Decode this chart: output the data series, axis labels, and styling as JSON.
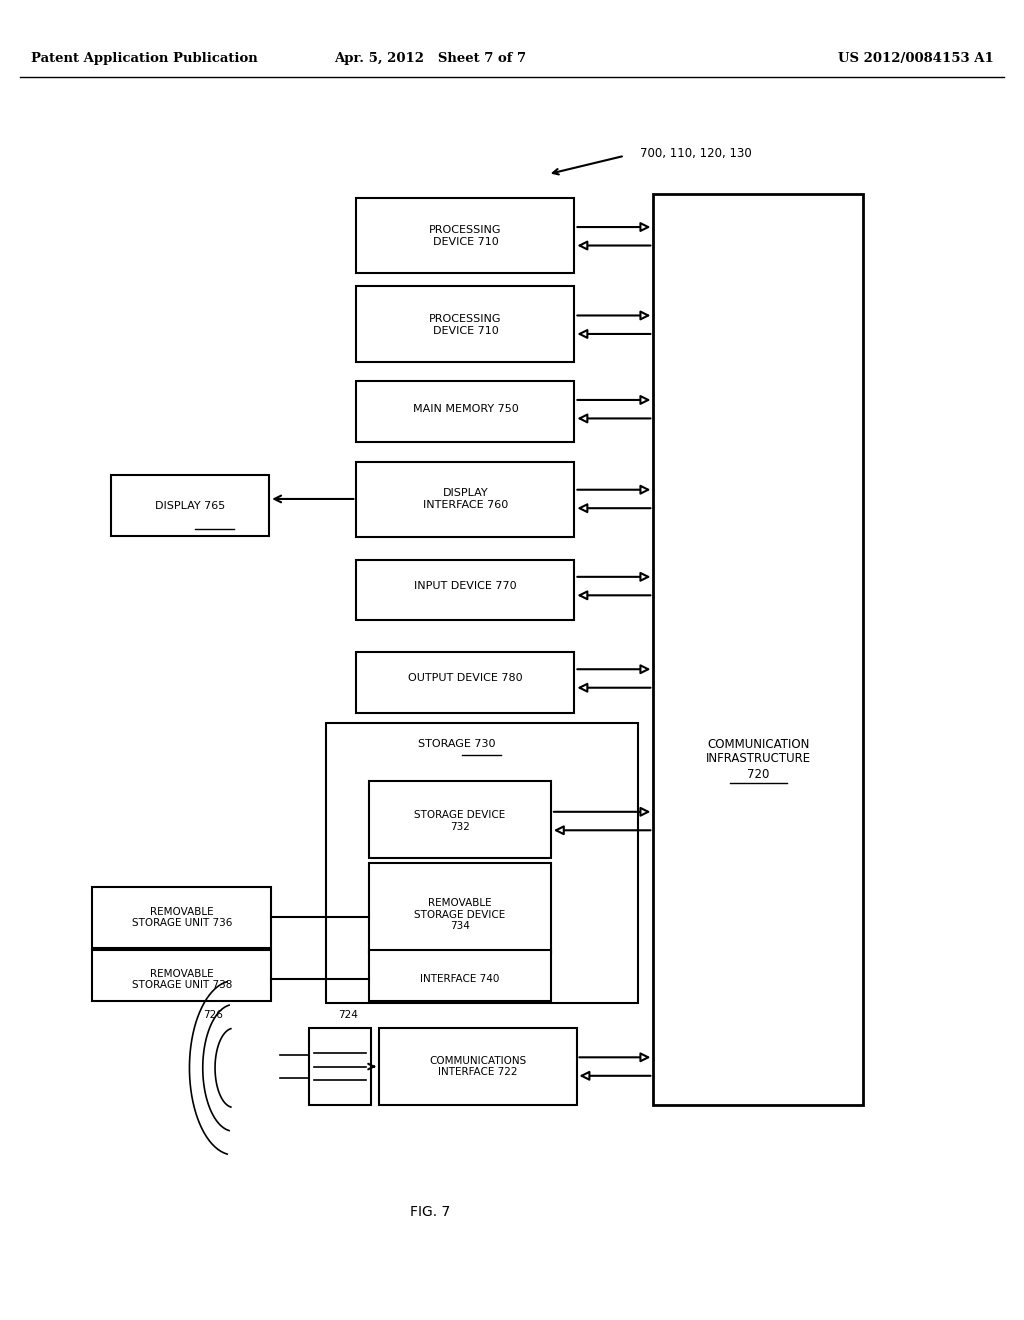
{
  "bg_color": "#ffffff",
  "header_left": "Patent Application Publication",
  "header_mid": "Apr. 5, 2012   Sheet 7 of 7",
  "header_right": "US 2012/0084153 A1",
  "fig_label": "FIG. 7",
  "reference_label": "700, 110, 120, 130",
  "comm_infra_label": "COMMUNICATION\nINFRASTRUCTURE\n720"
}
